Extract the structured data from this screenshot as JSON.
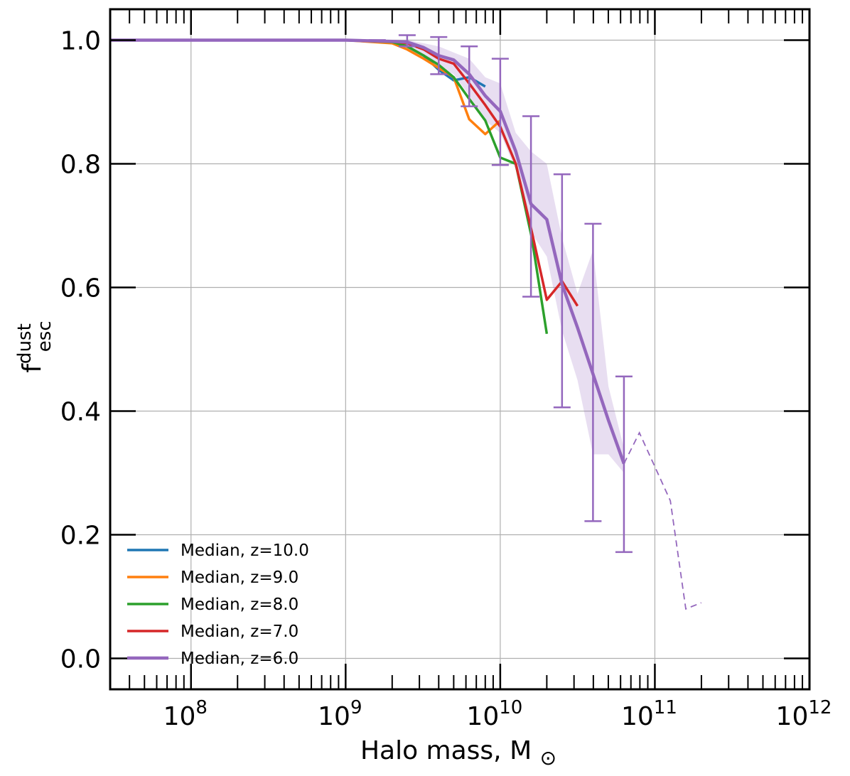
{
  "chart_data": {
    "type": "line",
    "xscale": "log",
    "xlim": [
      30000000,
      1000000000000
    ],
    "ylim": [
      -0.05,
      1.05
    ],
    "xlabel": "Halo mass, M⊙",
    "ylabel_main": "f",
    "ylabel_sup": "dust",
    "ylabel_sub": "esc",
    "xticks": [
      {
        "value": 100000000,
        "base": "10",
        "exp": "8"
      },
      {
        "value": 1000000000,
        "base": "10",
        "exp": "9"
      },
      {
        "value": 10000000000,
        "base": "10",
        "exp": "10"
      },
      {
        "value": 100000000000,
        "base": "10",
        "exp": "11"
      },
      {
        "value": 1000000000000,
        "base": "10",
        "exp": "12"
      }
    ],
    "yticks": [
      {
        "value": 0.0,
        "label": "0.0"
      },
      {
        "value": 0.2,
        "label": "0.2"
      },
      {
        "value": 0.4,
        "label": "0.4"
      },
      {
        "value": 0.6,
        "label": "0.6"
      },
      {
        "value": 0.8,
        "label": "0.8"
      },
      {
        "value": 1.0,
        "label": "1.0"
      }
    ],
    "grid": true,
    "legend_position": "lower-left",
    "series": [
      {
        "name": "Median, z=10.0",
        "color": "#1f77b4",
        "x": [
          30000000,
          1000000000,
          2000000000,
          2500000000,
          3200000000,
          4000000000,
          5000000000,
          6300000000,
          8000000000
        ],
        "y": [
          1.0,
          1.0,
          0.997,
          0.99,
          0.975,
          0.952,
          0.935,
          0.94,
          0.925
        ]
      },
      {
        "name": "Median, z=9.0",
        "color": "#ff7f0e",
        "x": [
          30000000,
          1000000000,
          2000000000,
          2500000000,
          3200000000,
          4000000000,
          5000000000,
          6300000000,
          8000000000,
          10000000000
        ],
        "y": [
          1.0,
          1.0,
          0.995,
          0.985,
          0.97,
          0.955,
          0.94,
          0.872,
          0.848,
          0.87
        ]
      },
      {
        "name": "Median, z=8.0",
        "color": "#2ca02c",
        "x": [
          30000000,
          1000000000,
          2000000000,
          2500000000,
          3200000000,
          4000000000,
          5000000000,
          6300000000,
          8000000000,
          10000000000,
          12600000000,
          16000000000,
          20000000000
        ],
        "y": [
          1.0,
          1.0,
          0.997,
          0.99,
          0.975,
          0.96,
          0.94,
          0.905,
          0.87,
          0.81,
          0.8,
          0.68,
          0.525
        ]
      },
      {
        "name": "Median, z=7.0",
        "color": "#d62728",
        "x": [
          30000000,
          1000000000,
          2000000000,
          2500000000,
          3200000000,
          4000000000,
          5000000000,
          6300000000,
          8000000000,
          10000000000,
          12600000000,
          16000000000,
          20000000000,
          25100000000,
          31600000000
        ],
        "y": [
          1.0,
          1.0,
          0.998,
          0.995,
          0.985,
          0.97,
          0.962,
          0.93,
          0.895,
          0.86,
          0.8,
          0.69,
          0.58,
          0.61,
          0.57
        ]
      },
      {
        "name": "Median, z=6.0",
        "color": "#9467bd",
        "x": [
          30000000,
          1000000000,
          2000000000,
          2500000000,
          3200000000,
          4000000000,
          5000000000,
          6300000000,
          8000000000,
          10000000000,
          12600000000,
          15800000000,
          20000000000,
          25100000000,
          31600000000,
          39800000000,
          50100000000,
          63100000000
        ],
        "y": [
          1.0,
          1.0,
          0.998,
          0.997,
          0.988,
          0.975,
          0.968,
          0.945,
          0.91,
          0.885,
          0.82,
          0.735,
          0.71,
          0.605,
          0.535,
          0.46,
          0.385,
          0.315
        ]
      }
    ],
    "z6_extension": {
      "style": "dashed",
      "color": "#9467bd",
      "x": [
        63100000000,
        79400000000,
        100000000000,
        125900000000,
        158500000000,
        199500000000
      ],
      "y": [
        0.315,
        0.365,
        0.31,
        0.255,
        0.08,
        0.09
      ]
    },
    "z6_band": {
      "color": "#9467bd",
      "x": [
        2000000000,
        2500000000,
        3200000000,
        4000000000,
        5000000000,
        6300000000,
        8000000000,
        10000000000,
        12600000000,
        15800000000,
        20000000000,
        25100000000,
        31600000000,
        39800000000,
        50100000000,
        63100000000
      ],
      "upper": [
        1.0,
        1.0,
        0.995,
        0.99,
        0.98,
        0.97,
        0.94,
        0.93,
        0.85,
        0.82,
        0.8,
        0.68,
        0.59,
        0.66,
        0.44,
        0.34
      ],
      "lower": [
        0.995,
        0.985,
        0.97,
        0.955,
        0.945,
        0.91,
        0.87,
        0.85,
        0.79,
        0.69,
        0.65,
        0.53,
        0.45,
        0.33,
        0.33,
        0.3
      ]
    },
    "z6_errorbars": {
      "color": "#9467bd",
      "points": [
        {
          "x": 1600000000,
          "y": 1.0,
          "lo": 1.0,
          "hi": 1.0
        },
        {
          "x": 2500000000,
          "y": 0.997,
          "lo": 0.99,
          "hi": 1.008
        },
        {
          "x": 4000000000,
          "y": 0.975,
          "lo": 0.945,
          "hi": 1.005
        },
        {
          "x": 6300000000,
          "y": 0.945,
          "lo": 0.893,
          "hi": 0.99
        },
        {
          "x": 10000000000,
          "y": 0.885,
          "lo": 0.798,
          "hi": 0.97
        },
        {
          "x": 15800000000,
          "y": 0.735,
          "lo": 0.585,
          "hi": 0.877
        },
        {
          "x": 25100000000,
          "y": 0.605,
          "lo": 0.406,
          "hi": 0.783
        },
        {
          "x": 39800000000,
          "y": 0.46,
          "lo": 0.222,
          "hi": 0.703
        },
        {
          "x": 63100000000,
          "y": 0.315,
          "lo": 0.172,
          "hi": 0.456
        }
      ]
    }
  }
}
